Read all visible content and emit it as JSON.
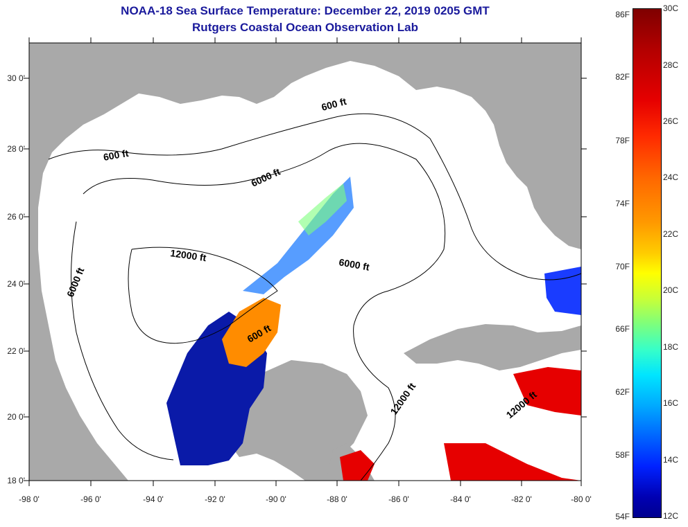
{
  "title": {
    "line1": "NOAA-18 Sea Surface Temperature:  December 22, 2019 0205 GMT",
    "line2": "Rutgers Coastal Ocean Observation Lab"
  },
  "map": {
    "lat_labels": [
      "30 0'",
      "28 0'",
      "26 0'",
      "24 0'",
      "22 0'",
      "20 0'",
      "18 0'"
    ],
    "lon_labels": [
      "-98 0'",
      "-96 0'",
      "-94 0'",
      "-92 0'",
      "-90 0'",
      "-88 0'",
      "-86 0'",
      "-84 0'",
      "-82 0'",
      "-80 0'"
    ],
    "contour_labels": [
      "600 ft",
      "600 ft",
      "6000 ft",
      "12000 ft",
      "6000 ft",
      "6000 ft",
      "600 ft",
      "12000 ft",
      "12000 ft"
    ],
    "colors": {
      "land": "#a9a9a9",
      "ocean": "#ffffff",
      "contour": "#000000"
    }
  },
  "colorbar": {
    "fahrenheit": [
      "86F",
      "82F",
      "78F",
      "74F",
      "70F",
      "66F",
      "62F",
      "58F",
      "54F"
    ],
    "celsius": [
      "30C",
      "28C",
      "26C",
      "24C",
      "22C",
      "20C",
      "18C",
      "16C",
      "14C",
      "12C"
    ]
  }
}
